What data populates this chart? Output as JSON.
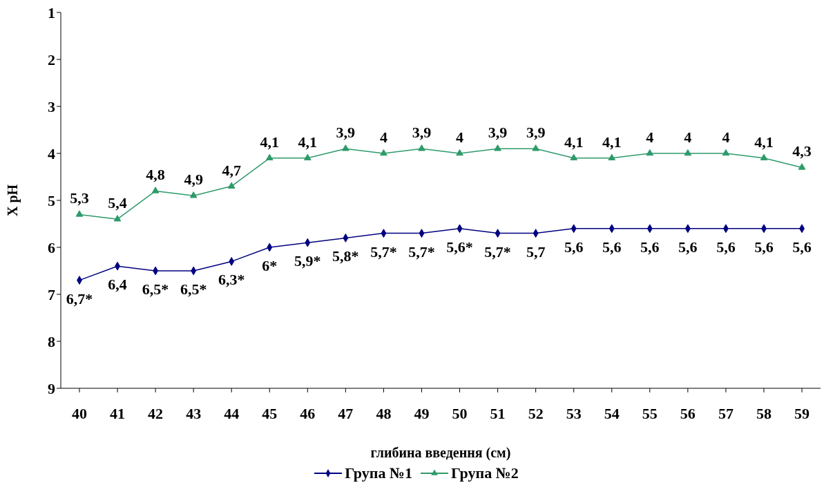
{
  "chart_data": {
    "type": "line",
    "xlabel": "глибина введення (см)",
    "ylabel": "X pH",
    "categories": [
      "40",
      "41",
      "42",
      "43",
      "44",
      "45",
      "46",
      "47",
      "48",
      "49",
      "50",
      "51",
      "52",
      "53",
      "54",
      "55",
      "56",
      "57",
      "58",
      "59"
    ],
    "ylim": [
      9,
      1
    ],
    "yticks": [
      1,
      2,
      3,
      4,
      5,
      6,
      7,
      8,
      9
    ],
    "legend": "bottom",
    "line_style": "solid",
    "series": [
      {
        "name": "Група №1",
        "color": "#000080",
        "marker": "diamond",
        "values": [
          6.7,
          6.4,
          6.5,
          6.5,
          6.3,
          6,
          5.9,
          5.8,
          5.7,
          5.7,
          5.6,
          5.7,
          5.7,
          5.6,
          5.6,
          5.6,
          5.6,
          5.6,
          5.6,
          5.6
        ],
        "value_labels": [
          "6,7*",
          "6,4",
          "6,5*",
          "6,5*",
          "6,3*",
          "6*",
          "5,9*",
          "5,8*",
          "5,7*",
          "5,7*",
          "5,6*",
          "5,7*",
          "5,7",
          "5,6",
          "5,6",
          "5,6",
          "5,6",
          "5,6",
          "5,6",
          "5,6"
        ]
      },
      {
        "name": "Група №2",
        "color": "#2e9a6a",
        "marker": "triangle",
        "values": [
          5.3,
          5.4,
          4.8,
          4.9,
          4.7,
          4.1,
          4.1,
          3.9,
          4,
          3.9,
          4,
          3.9,
          3.9,
          4.1,
          4.1,
          4,
          4,
          4,
          4.1,
          4.3
        ],
        "value_labels": [
          "5,3",
          "5,4",
          "4,8",
          "4,9",
          "4,7",
          "4,1",
          "4,1",
          "3,9",
          "4",
          "3,9",
          "4",
          "3,9",
          "3,9",
          "4,1",
          "4,1",
          "4",
          "4",
          "4",
          "4,1",
          "4,3"
        ]
      }
    ]
  }
}
